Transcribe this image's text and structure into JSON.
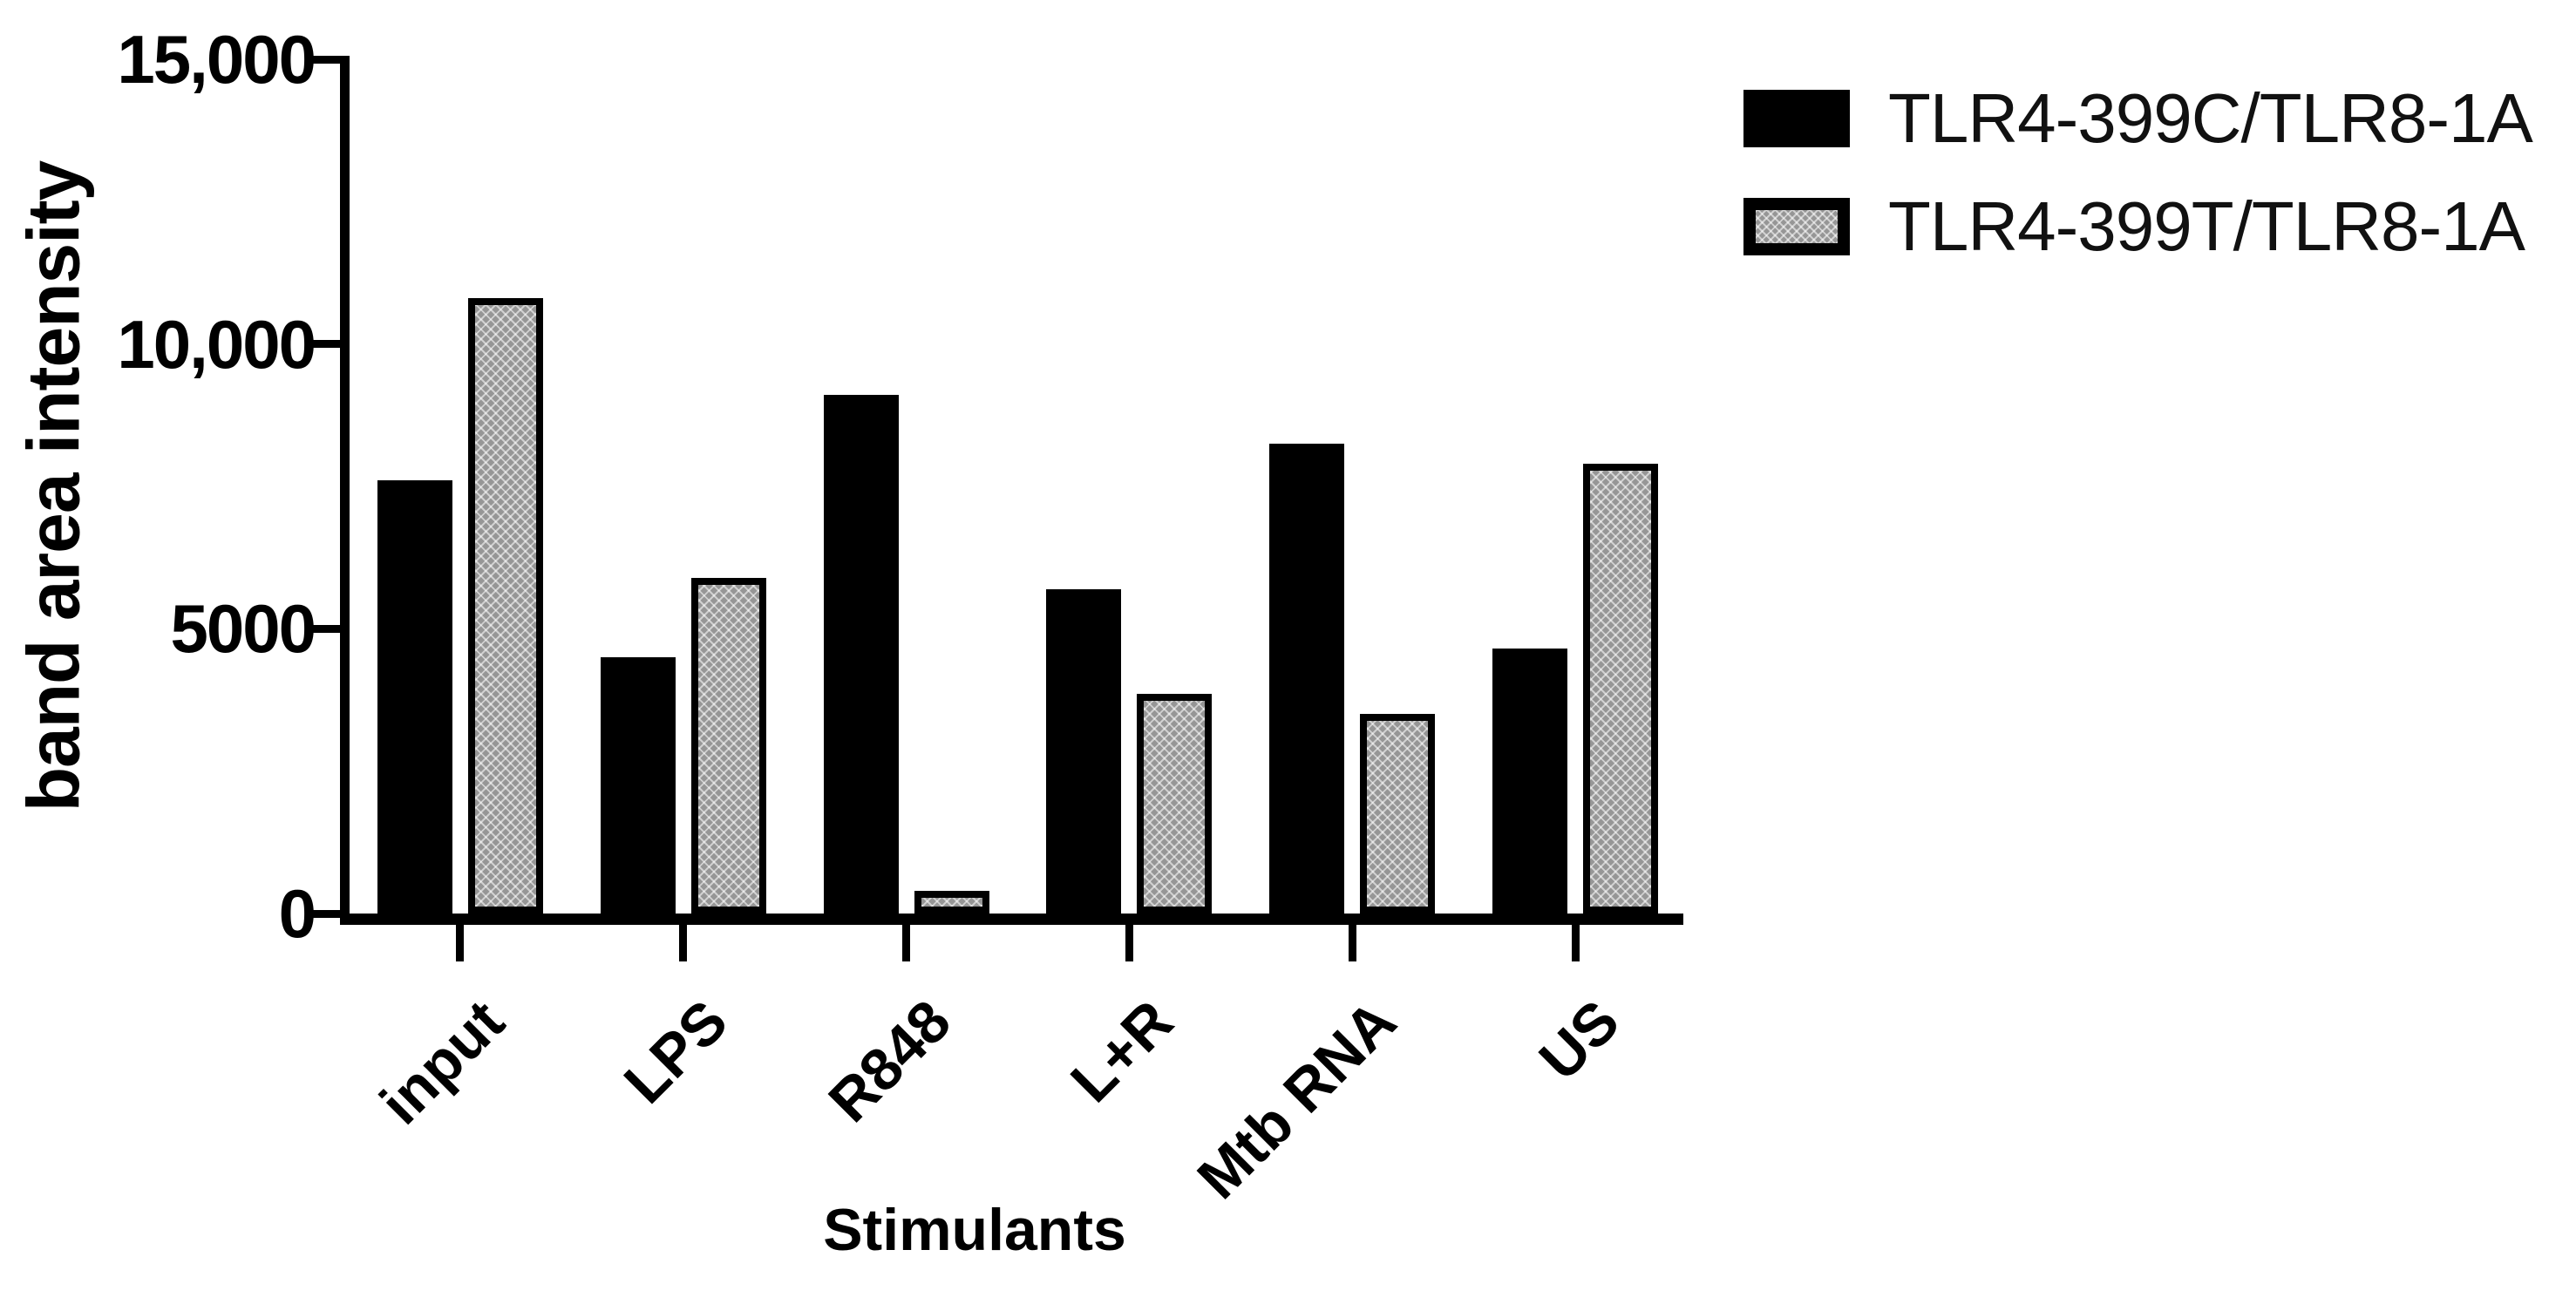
{
  "chart_data": {
    "type": "bar",
    "title": "",
    "xlabel": "Stimulants",
    "ylabel": "band area intensity",
    "categories": [
      "input",
      "LPS",
      "R848",
      "L+R",
      "Mtb RNA",
      "US"
    ],
    "series": [
      {
        "name": "TLR4-399C/TLR8-1A",
        "color": "#000000",
        "pattern": "solid",
        "values": [
          7600,
          4500,
          9100,
          5700,
          8250,
          4650
        ]
      },
      {
        "name": "TLR4-399T/TLR8-1A",
        "color": "#969696",
        "pattern": "stipple",
        "values": [
          10800,
          5900,
          400,
          3850,
          3500,
          7900
        ]
      }
    ],
    "ylim": [
      0,
      15000
    ],
    "yticks": {
      "values": [
        0,
        5000,
        10000,
        15000
      ],
      "labels": [
        "0",
        "5000",
        "10,000",
        "15,000"
      ]
    },
    "grid": false,
    "legend_position": "top-right",
    "colors": {
      "axis": "#000000",
      "background": "#ffffff",
      "bar_black": "#000000",
      "bar_gray": "#969696"
    }
  }
}
